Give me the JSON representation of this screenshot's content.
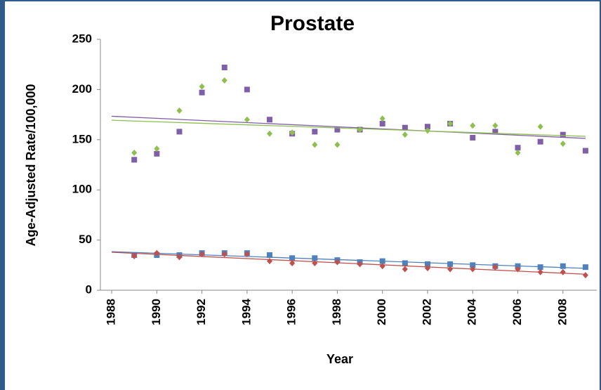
{
  "chart_data": {
    "type": "scatter",
    "title": "Prostate",
    "x_label": "Year",
    "y_label": "Age-Adjusted Rate/100,000",
    "x": [
      1989,
      1990,
      1991,
      1992,
      1993,
      1994,
      1995,
      1996,
      1997,
      1998,
      1999,
      2000,
      2001,
      2002,
      2003,
      2004,
      2005,
      2006,
      2007,
      2008,
      2009
    ],
    "series": [
      {
        "color": "#7f5fa8",
        "marker": "square",
        "trendline": true,
        "values": [
          130,
          136,
          158,
          197,
          222,
          200,
          170,
          156,
          158,
          160,
          160,
          166,
          162,
          163,
          166,
          152,
          158,
          142,
          148,
          155,
          139
        ]
      },
      {
        "color": "#8fbf4f",
        "marker": "diamond",
        "trendline": true,
        "values": [
          137,
          141,
          179,
          203,
          209,
          170,
          156,
          157,
          145,
          145,
          160,
          171,
          155,
          159,
          166,
          164,
          164,
          137,
          163,
          146,
          null
        ]
      },
      {
        "color": "#4f81bd",
        "marker": "square",
        "trendline": true,
        "values": [
          35,
          35,
          35,
          37,
          37,
          37,
          35,
          32,
          32,
          30,
          28,
          29,
          27,
          26,
          26,
          25,
          24,
          24,
          23,
          24,
          23
        ]
      },
      {
        "color": "#c0504d",
        "marker": "diamond",
        "trendline": true,
        "values": [
          34,
          37,
          33,
          36,
          36,
          36,
          29,
          27,
          27,
          28,
          26,
          24,
          21,
          22,
          21,
          21,
          23,
          21,
          18,
          18,
          15
        ]
      }
    ],
    "xlim": [
      1987.5,
      2009.5
    ],
    "xticks": [
      1988,
      1990,
      1992,
      1994,
      1996,
      1998,
      2000,
      2002,
      2004,
      2006,
      2008
    ],
    "ylim": [
      0,
      250
    ],
    "yticks": [
      0,
      50,
      100,
      150,
      200,
      250
    ],
    "grid": false
  }
}
